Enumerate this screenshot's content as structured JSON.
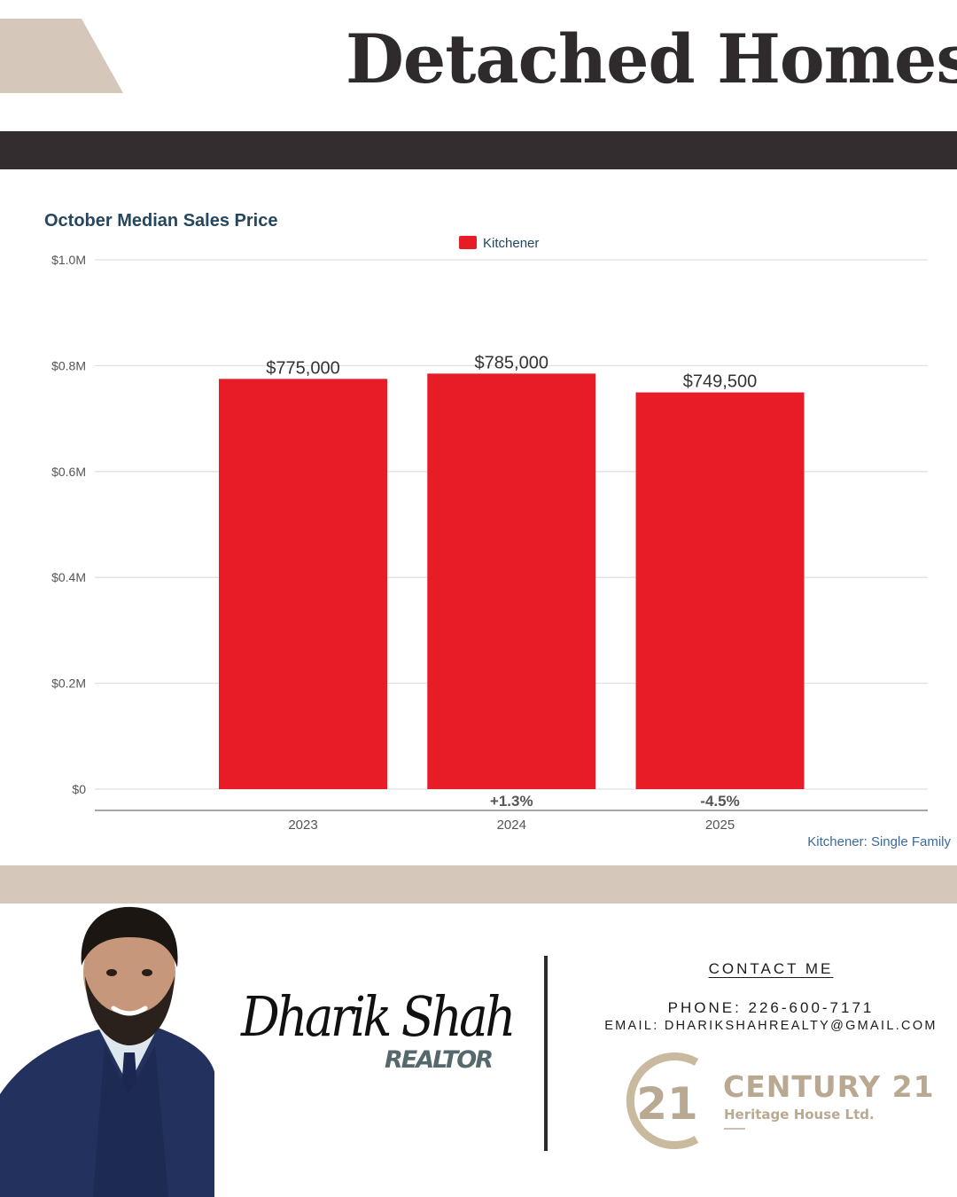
{
  "header": {
    "title": "Detached Homes"
  },
  "chart_data": {
    "type": "bar",
    "title": "October Median Sales Price",
    "legend": {
      "position": "top-center",
      "entries": [
        {
          "name": "Kitchener",
          "color": "#e81c27"
        }
      ]
    },
    "categories": [
      "2023",
      "2024",
      "2025"
    ],
    "series": [
      {
        "name": "Kitchener",
        "color": "#e81c27",
        "values": [
          775000,
          785000,
          749500
        ]
      }
    ],
    "data_labels": [
      "$775,000",
      "$785,000",
      "$749,500"
    ],
    "change_labels": [
      "",
      "+1.3%",
      "-4.5%"
    ],
    "ylim": [
      0,
      1000000
    ],
    "yticks": [
      0,
      200000,
      400000,
      600000,
      800000,
      1000000
    ],
    "ytick_labels": [
      "$0",
      "$0.2M",
      "$0.4M",
      "$0.6M",
      "$0.8M",
      "$1.0M"
    ],
    "grid": true,
    "footnote": "Kitchener: Single Family"
  },
  "agent": {
    "name": "Dharik Shah",
    "role": "REALTOR"
  },
  "contact": {
    "heading": "CONTACT ME",
    "phone": "PHONE: 226-600-7171",
    "email": "EMAIL: DHARIKSHAHREALTY@GMAIL.COM"
  },
  "brokerage": {
    "mark": "21",
    "name": "CENTURY 21",
    "subtitle": "Heritage House Ltd."
  },
  "colors": {
    "bar": "#e81c27",
    "dark_band": "#332d2f",
    "tan": "#d6c7bb",
    "chart_title": "#24465f",
    "logo_gold": "#b9a993"
  }
}
